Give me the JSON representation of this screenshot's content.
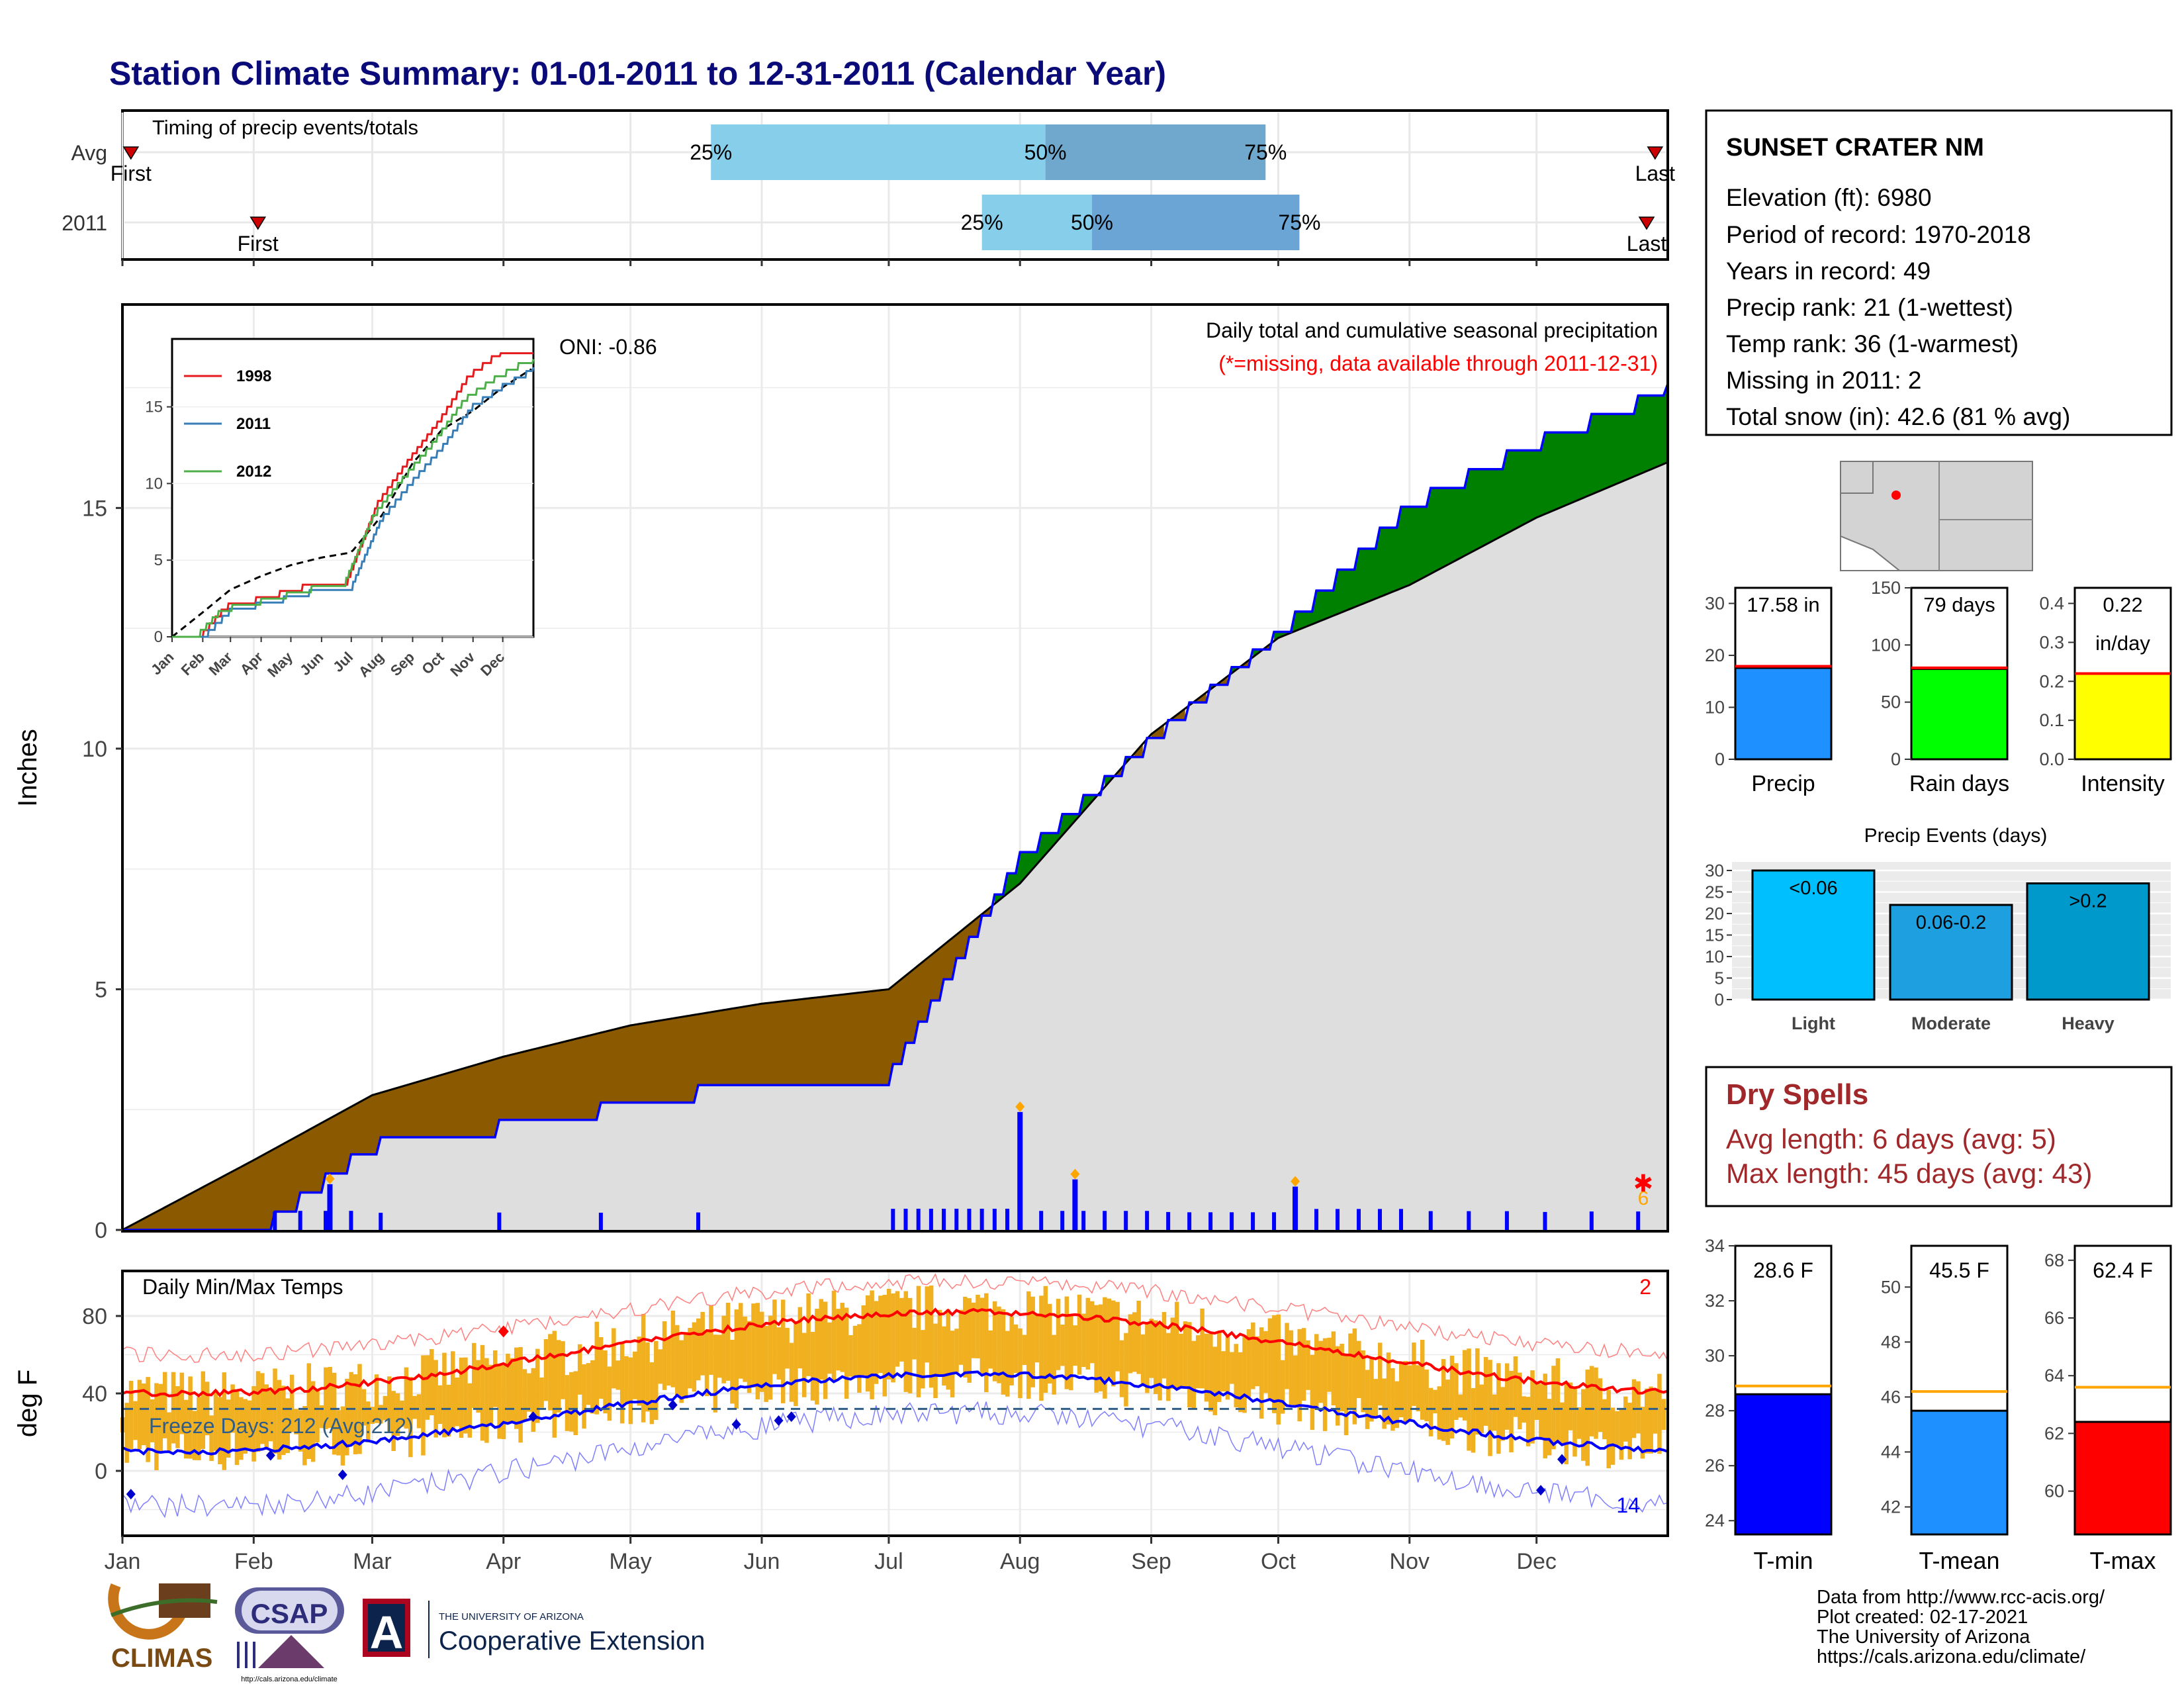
{
  "page_title": "Station Climate Summary: 01-01-2011 to 12-31-2011 (Calendar Year)",
  "colors": {
    "title": "#0a0a78",
    "wet": "#008000",
    "dry": "#8b5a00",
    "cum": "#0000ff",
    "normal": "#000000",
    "red": "#ff0000",
    "drytext": "#a0282a"
  },
  "timing": {
    "label": "Timing of precip events/totals",
    "rows": [
      {
        "name": "Avg",
        "first_day": 2,
        "p25": 139,
        "p50": 218,
        "p75": 270,
        "last_day": 362,
        "first_label": "First",
        "last_label": "Last"
      },
      {
        "name": "2011",
        "first_day": 32,
        "p25": 203,
        "p50": 229,
        "p75": 278,
        "last_day": 360,
        "first_label": "First",
        "last_label": "Last"
      }
    ],
    "pct_labels": [
      "25%",
      "50%",
      "75%"
    ]
  },
  "station": {
    "name": "SUNSET CRATER NM",
    "lines": [
      "Elevation (ft): 6980",
      "Period of record: 1970-2018",
      "Years in record: 49",
      "Precip rank: 21 (1-wettest)",
      "Temp rank: 36 (1-warmest)",
      "Missing in 2011: 2",
      "Total snow (in): 42.6 (81 % avg)"
    ]
  },
  "main": {
    "ylabel": "Inches",
    "note1": "Daily total and cumulative seasonal precipitation",
    "note2": "(*=missing, data available through 2011-12-31)",
    "oni": "ONI: -0.86",
    "missing_count": "6",
    "yticks": [
      "0",
      "5",
      "10",
      "15"
    ]
  },
  "inset": {
    "legend": [
      "1998",
      "2011",
      "2012"
    ],
    "yticks": [
      "0",
      "5",
      "10",
      "15"
    ],
    "months": [
      "Jan",
      "Feb",
      "Mar",
      "Apr",
      "May",
      "Jun",
      "Jul",
      "Aug",
      "Sep",
      "Oct",
      "Nov",
      "Dec"
    ]
  },
  "temps": {
    "label": "Daily Min/Max Temps",
    "ylabel": "deg F",
    "freeze": "Freeze Days: 212 (Avg:212)",
    "missing_top": "2",
    "missing_bottom": "14",
    "yticks": [
      "0",
      "40",
      "80"
    ]
  },
  "months": [
    "Jan",
    "Feb",
    "Mar",
    "Apr",
    "May",
    "Jun",
    "Jul",
    "Aug",
    "Sep",
    "Oct",
    "Nov",
    "Dec"
  ],
  "gauges": [
    {
      "label": "Precip",
      "value_label": "17.58 in",
      "value": 17.58,
      "avg": 17.9,
      "ymax": 33,
      "ticks": [
        "0",
        "10",
        "20",
        "30"
      ],
      "color": "#1e90ff"
    },
    {
      "label": "Rain days",
      "value_label": "79 days",
      "value": 79,
      "avg": 80,
      "ymax": 150,
      "ticks": [
        "0",
        "50",
        "100",
        "150"
      ],
      "color": "#00ff00"
    },
    {
      "label": "Intensity",
      "value_label": "0.22",
      "value_label2": "in/day",
      "value": 0.22,
      "avg": 0.22,
      "ymax": 0.44,
      "ticks": [
        "0.0",
        "0.1",
        "0.2",
        "0.3",
        "0.4"
      ],
      "color": "#ffff00"
    }
  ],
  "events": {
    "title": "Precip Events (days)",
    "bars": [
      {
        "label": "Light",
        "inner": "<0.06",
        "value": 30,
        "color": "#00bfff"
      },
      {
        "label": "Moderate",
        "inner": "0.06-0.2",
        "value": 22,
        "color": "#1ea0e0"
      },
      {
        "label": "Heavy",
        "inner": ">0.2",
        "value": 27,
        "color": "#0099cc"
      }
    ],
    "yticks": [
      "0",
      "5",
      "10",
      "15",
      "20",
      "25",
      "30"
    ]
  },
  "dry_spells": {
    "title": "Dry Spells",
    "line1": "Avg length: 6 days (avg: 5)",
    "line2": "Max length: 45 days (avg: 43)"
  },
  "temp_gauges": [
    {
      "label": "T-min",
      "value_label": "28.6 F",
      "value": 28.6,
      "avg": 28.9,
      "ymin": 23.5,
      "ymax": 34,
      "ticks": [
        "24",
        "26",
        "28",
        "30",
        "32",
        "34"
      ],
      "color": "#0000ff"
    },
    {
      "label": "T-mean",
      "value_label": "45.5 F",
      "value": 45.5,
      "avg": 46.2,
      "ymin": 41,
      "ymax": 51.5,
      "ticks": [
        "42",
        "44",
        "46",
        "48",
        "50"
      ],
      "color": "#1e90ff"
    },
    {
      "label": "T-max",
      "value_label": "62.4 F",
      "value": 62.4,
      "avg": 63.6,
      "ymin": 58.5,
      "ymax": 68.5,
      "ticks": [
        "60",
        "62",
        "64",
        "66",
        "68"
      ],
      "color": "#ff0000"
    }
  ],
  "footer": [
    "Data from http://www.rcc-acis.org/",
    "Plot created: 02-17-2021",
    "The University of Arizona",
    "https://cals.arizona.edu/climate/"
  ],
  "logos": {
    "climas": "CLIMAS",
    "csap": "CSAP",
    "csap_url": "http://cals.arizona.edu/climate",
    "ua_small": "THE UNIVERSITY OF ARIZONA",
    "ua_big": "Cooperative Extension",
    "ua_letter": "A"
  },
  "chart_data": {
    "type": "area",
    "title": "Daily total and cumulative seasonal precipitation",
    "ylabel": "Inches",
    "ylim": [
      0,
      19.2
    ],
    "x": [
      "Jan",
      "Feb",
      "Mar",
      "Apr",
      "May",
      "Jun",
      "Jul",
      "Aug",
      "Sep",
      "Oct",
      "Nov",
      "Dec"
    ],
    "series": [
      {
        "name": "2011",
        "cumulative_month_start": [
          0,
          0.05,
          1.9,
          2.3,
          2.75,
          3.25,
          3.3,
          7.85,
          10.3,
          12.5,
          15.2,
          16.5
        ],
        "year_end": 17.58
      },
      {
        "name": "",
        "cumulative_month_start": [
          0,
          1.45,
          2.8,
          3.6,
          4.25,
          4.7,
          5.0,
          7.2,
          10.3,
          12.3,
          13.4,
          14.8
        ],
        "year_end": 15.95
      }
    ],
    "big_daily_events": [
      {
        "date": "2011-02-19",
        "in": 0.95
      },
      {
        "date": "2011-08-01",
        "in": 2.45
      },
      {
        "date": "2011-08-14",
        "in": 1.05
      },
      {
        "date": "2011-10-05",
        "in": 0.9
      }
    ]
  }
}
